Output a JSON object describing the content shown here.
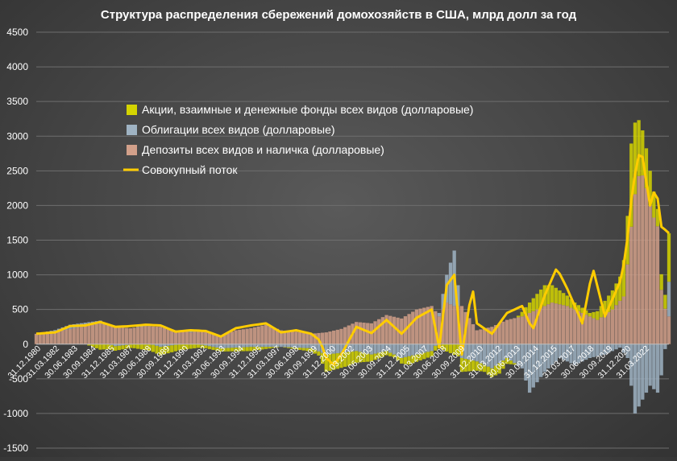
{
  "chart_data": {
    "type": "area",
    "title": "Структура распределения сбережений домохозяйств в США, млрд долл за год",
    "ylim": [
      -1500,
      4500
    ],
    "yticks": [
      -1500,
      -1000,
      -500,
      0,
      500,
      1000,
      1500,
      2000,
      2500,
      3000,
      3500,
      4000,
      4500
    ],
    "grid": true,
    "legend_position": "upper-left",
    "x_tick_labels": [
      "31.12.1980",
      "31.03.1982",
      "30.06.1983",
      "30.09.1984",
      "31.12.1985",
      "31.03.1987",
      "30.06.1988",
      "30.09.1989",
      "31.12.1990",
      "31.03.1992",
      "30.06.1993",
      "30.09.1994",
      "31.12.1995",
      "31.03.1997",
      "30.06.1998",
      "30.09.1999",
      "31.12.2000",
      "31.03.2002",
      "30.06.2003",
      "30.09.2004",
      "31.12.2005",
      "31.03.2007",
      "30.06.2008",
      "30.09.2009",
      "31.12.2010",
      "31.03.2012",
      "30.06.2013",
      "30.09.2014",
      "31.12.2015",
      "31.03.2017",
      "30.06.2018",
      "30.09.2019",
      "31.12.2020",
      "31.03.2022"
    ],
    "x_start_year": 1980.75,
    "x_end_year": 2022.75,
    "series": [
      {
        "name": "Акции, взаимные и денежные фонды всех видов (долларовые)",
        "color": "#d4d400",
        "points": [
          [
            1980.75,
            0
          ],
          [
            1984,
            0
          ],
          [
            1985,
            -80
          ],
          [
            1987,
            -50
          ],
          [
            1989,
            -120
          ],
          [
            1992,
            -40
          ],
          [
            1995,
            -60
          ],
          [
            1997,
            0
          ],
          [
            1999.5,
            -60
          ],
          [
            2000,
            -250
          ],
          [
            2001.5,
            -200
          ],
          [
            2003,
            -100
          ],
          [
            2004.5,
            -40
          ],
          [
            2005.5,
            -120
          ],
          [
            2007.5,
            -60
          ],
          [
            2009,
            -200
          ],
          [
            2010.5,
            -100
          ],
          [
            2011.5,
            -150
          ],
          [
            2012.5,
            -20
          ],
          [
            2013.5,
            150
          ],
          [
            2014.5,
            300
          ],
          [
            2015.5,
            200
          ],
          [
            2016.5,
            100
          ],
          [
            2017.5,
            50
          ],
          [
            2018.5,
            200
          ],
          [
            2019.5,
            350
          ],
          [
            2020,
            700
          ],
          [
            2020.3,
            1300
          ],
          [
            2020.6,
            900
          ],
          [
            2021,
            650
          ],
          [
            2021.5,
            500
          ],
          [
            2022,
            250
          ],
          [
            2022.5,
            200
          ],
          [
            2022.75,
            700
          ]
        ]
      },
      {
        "name": "Облигации всех видов (долларовые)",
        "color": "#9fb3c3",
        "points": [
          [
            1980.75,
            0
          ],
          [
            1983,
            60
          ],
          [
            1985,
            40
          ],
          [
            1986,
            -30
          ],
          [
            1988,
            20
          ],
          [
            1989,
            -40
          ],
          [
            1991,
            20
          ],
          [
            1993,
            -60
          ],
          [
            1995,
            -40
          ],
          [
            1997,
            -40
          ],
          [
            1999,
            -60
          ],
          [
            2000,
            -150
          ],
          [
            2002,
            -100
          ],
          [
            2003,
            -150
          ],
          [
            2004,
            -100
          ],
          [
            2005,
            -200
          ],
          [
            2006,
            -150
          ],
          [
            2007,
            -100
          ],
          [
            2007.5,
            50
          ],
          [
            2008,
            400
          ],
          [
            2008.5,
            800
          ],
          [
            2009,
            -200
          ],
          [
            2010,
            -250
          ],
          [
            2011,
            -350
          ],
          [
            2012,
            -200
          ],
          [
            2013,
            -350
          ],
          [
            2013.5,
            -700
          ],
          [
            2014.5,
            -400
          ],
          [
            2015.5,
            -200
          ],
          [
            2016.5,
            -300
          ],
          [
            2017.5,
            -200
          ],
          [
            2018.5,
            -150
          ],
          [
            2019.5,
            -50
          ],
          [
            2020,
            -200
          ],
          [
            2020.5,
            -1000
          ],
          [
            2021,
            -800
          ],
          [
            2021.5,
            -600
          ],
          [
            2022,
            -700
          ],
          [
            2022.4,
            -300
          ],
          [
            2022.75,
            500
          ]
        ]
      },
      {
        "name": "Депозиты всех видов и наличка (долларовые)",
        "color": "#d2a08a",
        "points": [
          [
            1980.75,
            150
          ],
          [
            1982,
            170
          ],
          [
            1983,
            220
          ],
          [
            1984,
            260
          ],
          [
            1985,
            300
          ],
          [
            1986,
            250
          ],
          [
            1987,
            230
          ],
          [
            1988,
            260
          ],
          [
            1989,
            250
          ],
          [
            1990,
            200
          ],
          [
            1991,
            170
          ],
          [
            1992,
            200
          ],
          [
            1993,
            120
          ],
          [
            1994,
            200
          ],
          [
            1995,
            230
          ],
          [
            1996,
            280
          ],
          [
            1997,
            200
          ],
          [
            1998,
            180
          ],
          [
            1999,
            150
          ],
          [
            2000,
            170
          ],
          [
            2001,
            220
          ],
          [
            2002,
            320
          ],
          [
            2003,
            300
          ],
          [
            2004,
            420
          ],
          [
            2005,
            370
          ],
          [
            2006,
            500
          ],
          [
            2007,
            550
          ],
          [
            2007.5,
            400
          ],
          [
            2008,
            600
          ],
          [
            2008.5,
            550
          ],
          [
            2009,
            550
          ],
          [
            2010,
            200
          ],
          [
            2011,
            250
          ],
          [
            2012,
            350
          ],
          [
            2013,
            400
          ],
          [
            2014,
            500
          ],
          [
            2015,
            600
          ],
          [
            2016,
            550
          ],
          [
            2017,
            450
          ],
          [
            2018,
            350
          ],
          [
            2019,
            500
          ],
          [
            2019.8,
            700
          ],
          [
            2020.2,
            1600
          ],
          [
            2020.6,
            2350
          ],
          [
            2020.9,
            2500
          ],
          [
            2021.2,
            2300
          ],
          [
            2021.6,
            1900
          ],
          [
            2022,
            1700
          ],
          [
            2022.3,
            600
          ],
          [
            2022.75,
            400
          ]
        ]
      },
      {
        "name": "Совокупный поток",
        "color": "#ffcc00",
        "points": [
          [
            1980.75,
            150
          ],
          [
            1982,
            170
          ],
          [
            1983,
            260
          ],
          [
            1984,
            270
          ],
          [
            1985,
            320
          ],
          [
            1986,
            250
          ],
          [
            1987,
            260
          ],
          [
            1988,
            280
          ],
          [
            1989,
            270
          ],
          [
            1990,
            180
          ],
          [
            1991,
            200
          ],
          [
            1992,
            190
          ],
          [
            1993,
            110
          ],
          [
            1994,
            230
          ],
          [
            1995,
            270
          ],
          [
            1996,
            300
          ],
          [
            1997,
            170
          ],
          [
            1998,
            200
          ],
          [
            1999,
            150
          ],
          [
            1999.6,
            50
          ],
          [
            2000,
            -200
          ],
          [
            2000.5,
            -300
          ],
          [
            2001,
            -150
          ],
          [
            2002,
            250
          ],
          [
            2003,
            160
          ],
          [
            2004,
            350
          ],
          [
            2005,
            150
          ],
          [
            2006,
            380
          ],
          [
            2007,
            500
          ],
          [
            2007.5,
            -50
          ],
          [
            2008,
            850
          ],
          [
            2008.5,
            1000
          ],
          [
            2009,
            -150
          ],
          [
            2009.7,
            850
          ],
          [
            2010,
            300
          ],
          [
            2011,
            150
          ],
          [
            2012,
            450
          ],
          [
            2013,
            550
          ],
          [
            2013.7,
            200
          ],
          [
            2014.5,
            700
          ],
          [
            2015.3,
            1100
          ],
          [
            2016,
            800
          ],
          [
            2017,
            300
          ],
          [
            2017.7,
            1100
          ],
          [
            2018.5,
            400
          ],
          [
            2019.5,
            900
          ],
          [
            2019.9,
            1300
          ],
          [
            2020.2,
            2000
          ],
          [
            2020.6,
            2600
          ],
          [
            2020.9,
            2850
          ],
          [
            2021.2,
            2400
          ],
          [
            2021.5,
            2000
          ],
          [
            2021.9,
            2300
          ],
          [
            2022.2,
            1700
          ],
          [
            2022.5,
            1650
          ],
          [
            2022.75,
            1600
          ]
        ]
      }
    ]
  }
}
